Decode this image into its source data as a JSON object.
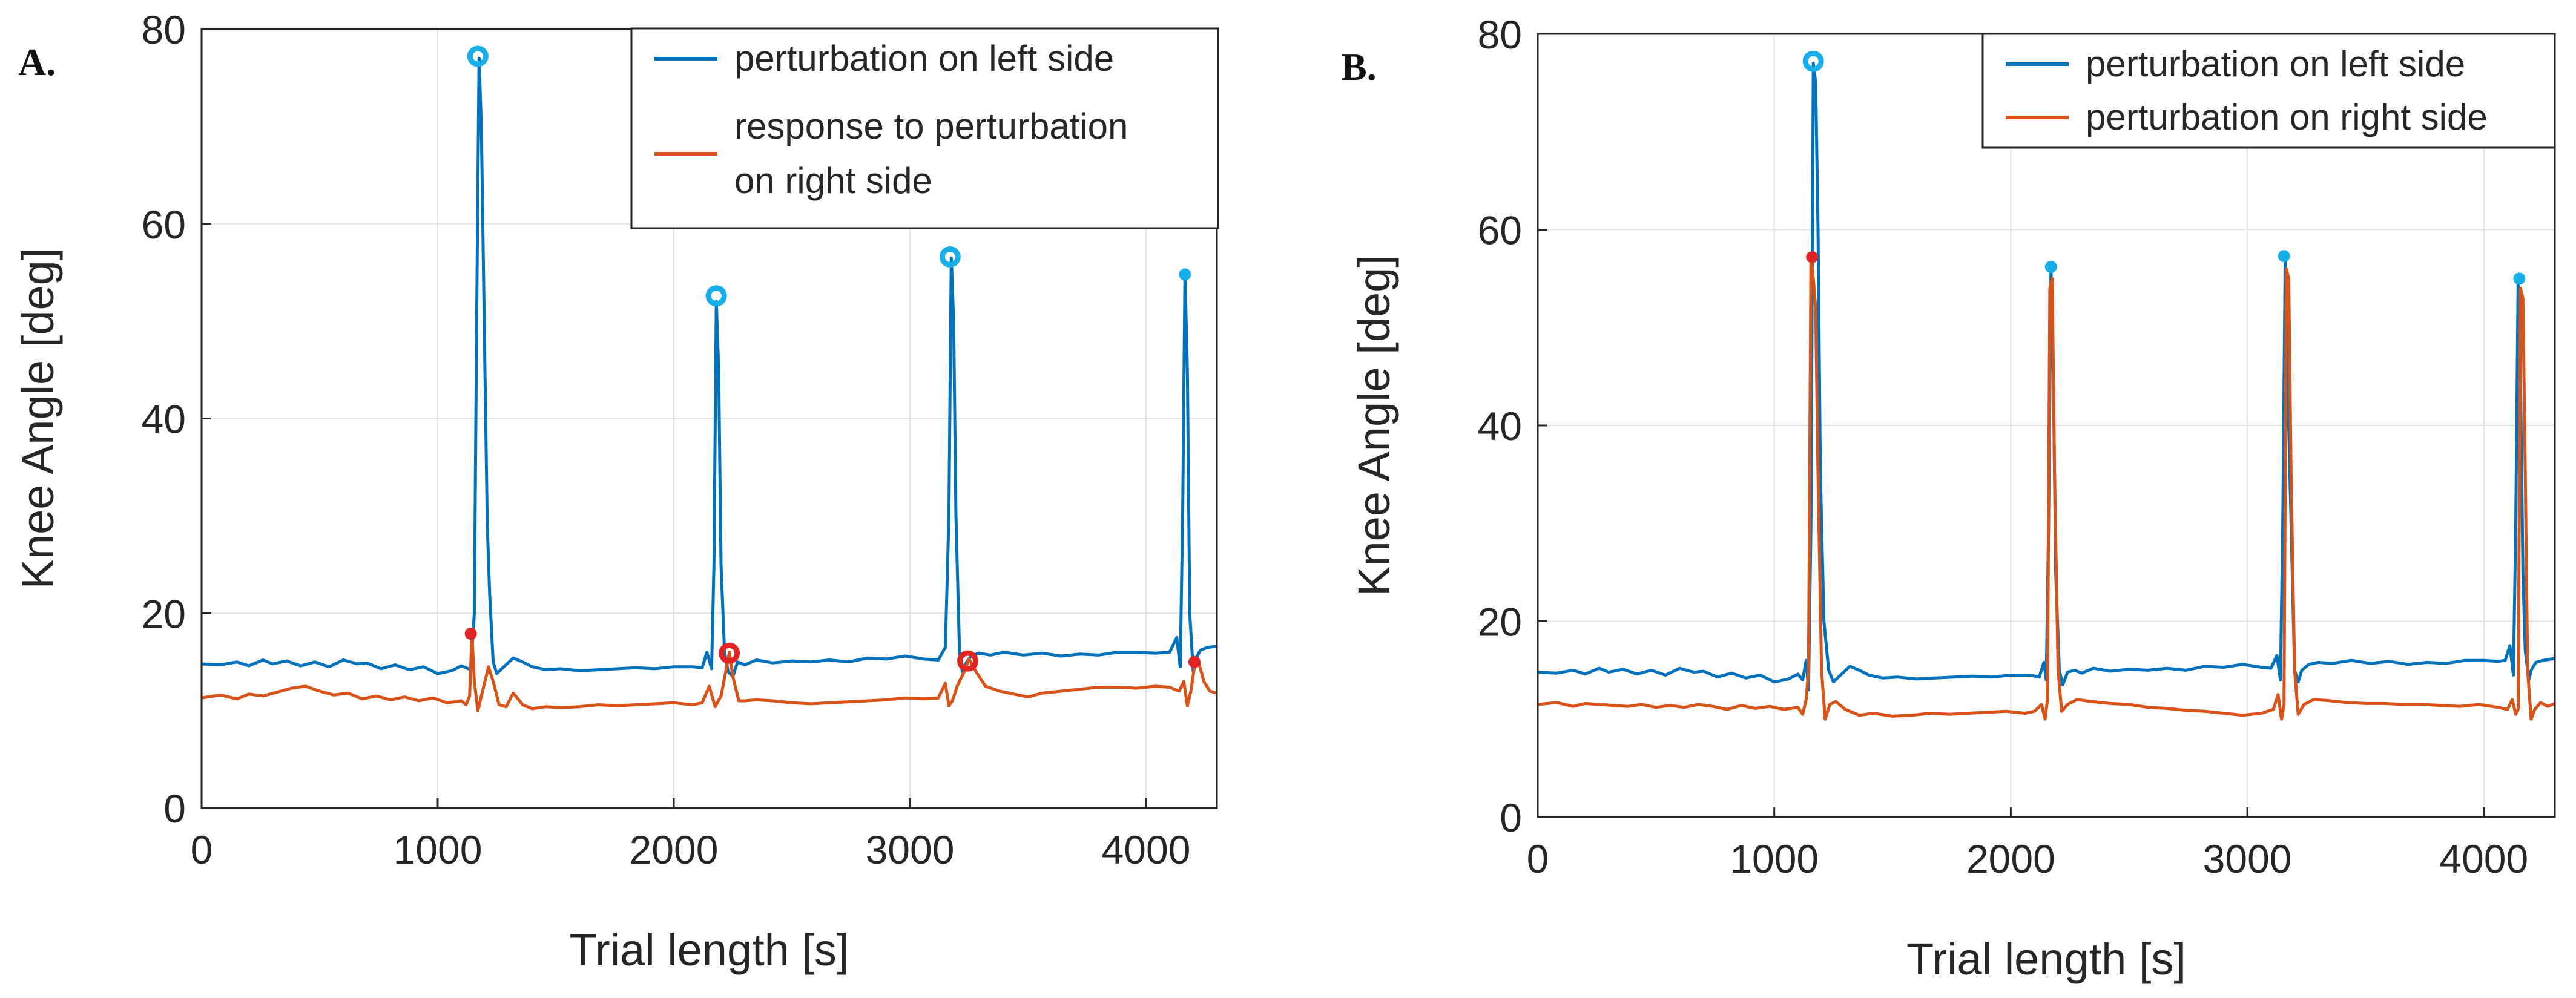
{
  "colors": {
    "blue": "#0072BD",
    "orange": "#D95319",
    "marker_cyan": "#17AEEA",
    "marker_red": "#E02424",
    "grid": "#E3E3E3",
    "axis": "#262626"
  },
  "chart_data": [
    {
      "type": "line",
      "panel_label": "A.",
      "title": "",
      "xlabel": "Trial length [s]",
      "ylabel": "Knee Angle [deg]",
      "xlim": [
        0,
        4300
      ],
      "ylim": [
        0,
        80
      ],
      "xticks": [
        0,
        1000,
        2000,
        3000,
        4000
      ],
      "xtick_labels": [
        "0",
        "1000",
        "2000",
        "3000",
        "4000"
      ],
      "yticks": [
        0,
        20,
        40,
        60,
        80
      ],
      "ytick_labels": [
        "0",
        "20",
        "40",
        "60",
        "80"
      ],
      "grid": true,
      "legend_position": "top-right",
      "series": [
        {
          "name": "perturbation on left side",
          "legend_lines": [
            "perturbation on left side"
          ],
          "color": "#0072BD",
          "x": [
            0,
            80,
            150,
            200,
            260,
            300,
            360,
            420,
            480,
            540,
            600,
            660,
            700,
            760,
            820,
            880,
            940,
            1000,
            1060,
            1100,
            1140,
            1155,
            1165,
            1175,
            1185,
            1200,
            1210,
            1220,
            1235,
            1250,
            1280,
            1320,
            1360,
            1400,
            1460,
            1520,
            1600,
            1680,
            1760,
            1840,
            1920,
            2000,
            2080,
            2120,
            2140,
            2160,
            2170,
            2180,
            2190,
            2200,
            2215,
            2230,
            2250,
            2270,
            2300,
            2350,
            2420,
            2500,
            2580,
            2660,
            2740,
            2820,
            2900,
            2980,
            3060,
            3120,
            3150,
            3165,
            3175,
            3185,
            3195,
            3210,
            3222,
            3240,
            3260,
            3290,
            3340,
            3400,
            3480,
            3560,
            3640,
            3720,
            3800,
            3880,
            3960,
            4040,
            4100,
            4130,
            4145,
            4155,
            4165,
            4175,
            4185,
            4200,
            4215,
            4230,
            4260,
            4300
          ],
          "y": [
            14.8,
            14.7,
            15.0,
            14.6,
            15.2,
            14.8,
            15.1,
            14.6,
            15.0,
            14.5,
            15.2,
            14.8,
            14.9,
            14.3,
            14.7,
            14.2,
            14.5,
            13.8,
            14.1,
            14.6,
            14.2,
            20.0,
            50.0,
            77.0,
            70.0,
            45.0,
            29.0,
            22.0,
            15.0,
            13.8,
            14.5,
            15.4,
            15.0,
            14.5,
            14.2,
            14.3,
            14.1,
            14.2,
            14.3,
            14.4,
            14.3,
            14.5,
            14.5,
            14.4,
            16.0,
            14.3,
            25.0,
            52.0,
            45.0,
            25.0,
            16.0,
            14.0,
            13.5,
            15.0,
            14.7,
            15.2,
            14.9,
            15.1,
            15.0,
            15.2,
            15.0,
            15.4,
            15.3,
            15.6,
            15.3,
            15.2,
            16.5,
            30.0,
            56.5,
            50.0,
            30.0,
            16.0,
            14.0,
            15.0,
            15.6,
            15.9,
            15.7,
            16.0,
            15.7,
            15.9,
            15.6,
            15.8,
            15.7,
            16.0,
            16.0,
            15.9,
            16.0,
            17.5,
            14.5,
            30.0,
            54.8,
            45.0,
            20.0,
            14.0,
            15.5,
            16.2,
            16.5,
            16.6
          ]
        },
        {
          "name": "response to perturbation on right side",
          "legend_lines": [
            "response to perturbation",
            "on right side"
          ],
          "color": "#D95319",
          "x": [
            0,
            80,
            150,
            200,
            260,
            320,
            380,
            440,
            500,
            560,
            620,
            680,
            740,
            800,
            860,
            920,
            980,
            1040,
            1100,
            1120,
            1135,
            1145,
            1155,
            1170,
            1185,
            1200,
            1215,
            1235,
            1260,
            1290,
            1320,
            1360,
            1400,
            1460,
            1520,
            1600,
            1680,
            1760,
            1840,
            1920,
            2000,
            2080,
            2120,
            2150,
            2175,
            2200,
            2220,
            2235,
            2250,
            2275,
            2300,
            2350,
            2420,
            2500,
            2580,
            2660,
            2740,
            2820,
            2900,
            2980,
            3060,
            3120,
            3150,
            3165,
            3180,
            3200,
            3230,
            3250,
            3280,
            3320,
            3380,
            3440,
            3500,
            3560,
            3640,
            3720,
            3800,
            3880,
            3960,
            4040,
            4100,
            4140,
            4160,
            4175,
            4190,
            4205,
            4220,
            4245,
            4270,
            4300
          ],
          "y": [
            11.3,
            11.6,
            11.2,
            11.7,
            11.5,
            11.9,
            12.3,
            12.5,
            12.0,
            11.6,
            11.8,
            11.2,
            11.5,
            11.1,
            11.4,
            11.0,
            11.3,
            10.8,
            11.0,
            10.6,
            11.5,
            17.8,
            13.0,
            10.0,
            11.5,
            13.0,
            14.5,
            13.0,
            10.6,
            10.4,
            11.8,
            10.6,
            10.2,
            10.4,
            10.3,
            10.4,
            10.6,
            10.5,
            10.6,
            10.7,
            10.8,
            10.6,
            10.8,
            12.5,
            10.4,
            11.5,
            14.0,
            16.0,
            13.5,
            11.0,
            11.0,
            11.1,
            11.0,
            10.8,
            10.7,
            10.8,
            10.9,
            11.0,
            11.1,
            11.3,
            11.2,
            11.3,
            12.8,
            10.5,
            11.0,
            12.5,
            14.0,
            15.3,
            14.0,
            12.5,
            12.0,
            11.7,
            11.4,
            11.8,
            12.0,
            12.2,
            12.4,
            12.4,
            12.3,
            12.5,
            12.4,
            12.0,
            13.0,
            10.5,
            12.0,
            14.5,
            15.2,
            13.0,
            12.0,
            11.8
          ]
        }
      ],
      "markers": [
        {
          "series": 0,
          "shape": "ring",
          "color": "#17AEEA",
          "size": "large",
          "points": [
            [
              1170,
              77.2
            ],
            [
              2180,
              52.6
            ],
            [
              3170,
              56.6
            ]
          ]
        },
        {
          "series": 0,
          "shape": "dot",
          "color": "#17AEEA",
          "size": "small",
          "points": [
            [
              4165,
              54.8
            ]
          ]
        },
        {
          "series": 1,
          "shape": "dot",
          "color": "#E02424",
          "size": "small",
          "points": [
            [
              1140,
              17.9
            ],
            [
              4205,
              15.0
            ]
          ]
        },
        {
          "series": 1,
          "shape": "ring",
          "color": "#E02424",
          "size": "large",
          "points": [
            [
              2235,
              15.9
            ],
            [
              3245,
              15.1
            ]
          ]
        }
      ]
    },
    {
      "type": "line",
      "panel_label": "B.",
      "title": "",
      "xlabel": "Trial length [s]",
      "ylabel": "Knee Angle [deg]",
      "xlim": [
        0,
        4300
      ],
      "ylim": [
        0,
        80
      ],
      "xticks": [
        0,
        1000,
        2000,
        3000,
        4000
      ],
      "xtick_labels": [
        "0",
        "1000",
        "2000",
        "3000",
        "4000"
      ],
      "yticks": [
        0,
        20,
        40,
        60,
        80
      ],
      "ytick_labels": [
        "0",
        "20",
        "40",
        "60",
        "80"
      ],
      "grid": true,
      "legend_position": "top-right",
      "series": [
        {
          "name": "perturbation on left side",
          "legend_lines": [
            "perturbation on left side"
          ],
          "color": "#0072BD",
          "x": [
            0,
            80,
            150,
            200,
            260,
            300,
            360,
            420,
            480,
            540,
            600,
            660,
            700,
            760,
            820,
            880,
            940,
            1000,
            1060,
            1100,
            1120,
            1135,
            1145,
            1155,
            1165,
            1175,
            1185,
            1195,
            1210,
            1230,
            1250,
            1280,
            1320,
            1360,
            1400,
            1460,
            1520,
            1600,
            1680,
            1760,
            1840,
            1920,
            2000,
            2080,
            2120,
            2140,
            2150,
            2160,
            2170,
            2180,
            2190,
            2205,
            2220,
            2240,
            2270,
            2300,
            2350,
            2420,
            2500,
            2580,
            2660,
            2740,
            2820,
            2900,
            2980,
            3060,
            3100,
            3125,
            3140,
            3150,
            3160,
            3170,
            3185,
            3200,
            3215,
            3230,
            3260,
            3300,
            3360,
            3440,
            3520,
            3600,
            3680,
            3760,
            3840,
            3920,
            4000,
            4060,
            4090,
            4110,
            4125,
            4135,
            4145,
            4155,
            4165,
            4175,
            4190,
            4200,
            4220,
            4250,
            4300
          ],
          "y": [
            14.8,
            14.7,
            15.0,
            14.6,
            15.2,
            14.8,
            15.1,
            14.6,
            15.0,
            14.5,
            15.2,
            14.8,
            14.9,
            14.3,
            14.7,
            14.2,
            14.5,
            13.8,
            14.1,
            14.6,
            14.0,
            16.0,
            13.0,
            30.0,
            77.0,
            75.0,
            60.0,
            35.0,
            20.0,
            15.0,
            13.8,
            14.5,
            15.4,
            15.0,
            14.5,
            14.2,
            14.3,
            14.1,
            14.2,
            14.3,
            14.4,
            14.3,
            14.5,
            14.5,
            14.3,
            15.8,
            14.0,
            30.0,
            56.0,
            45.0,
            25.0,
            15.0,
            13.5,
            14.8,
            15.0,
            14.7,
            15.2,
            14.9,
            15.1,
            15.0,
            15.2,
            15.0,
            15.4,
            15.3,
            15.6,
            15.3,
            15.2,
            16.5,
            14.0,
            30.0,
            57.0,
            45.0,
            30.0,
            15.0,
            13.8,
            15.0,
            15.6,
            15.8,
            15.7,
            16.0,
            15.7,
            15.9,
            15.6,
            15.8,
            15.7,
            16.0,
            16.0,
            15.9,
            16.0,
            17.5,
            14.5,
            30.0,
            54.8,
            45.0,
            25.0,
            17.0,
            14.0,
            15.0,
            15.8,
            16.0,
            16.2
          ]
        },
        {
          "name": "perturbation on right side",
          "legend_lines": [
            "perturbation on right side"
          ],
          "color": "#D95319",
          "x": [
            0,
            80,
            150,
            200,
            260,
            320,
            380,
            440,
            500,
            560,
            620,
            680,
            740,
            800,
            860,
            920,
            980,
            1040,
            1100,
            1120,
            1135,
            1145,
            1155,
            1165,
            1175,
            1185,
            1200,
            1215,
            1235,
            1260,
            1300,
            1360,
            1420,
            1500,
            1580,
            1660,
            1740,
            1820,
            1900,
            1980,
            2060,
            2100,
            2130,
            2145,
            2155,
            2165,
            2175,
            2185,
            2200,
            2215,
            2240,
            2280,
            2340,
            2420,
            2500,
            2580,
            2660,
            2740,
            2820,
            2900,
            2980,
            3060,
            3110,
            3130,
            3145,
            3155,
            3165,
            3175,
            3185,
            3200,
            3215,
            3240,
            3280,
            3340,
            3420,
            3500,
            3580,
            3660,
            3740,
            3820,
            3900,
            3980,
            4060,
            4100,
            4120,
            4135,
            4145,
            4155,
            4165,
            4175,
            4185,
            4200,
            4215,
            4240,
            4270,
            4300
          ],
          "y": [
            11.5,
            11.7,
            11.3,
            11.6,
            11.5,
            11.4,
            11.3,
            11.5,
            11.2,
            11.4,
            11.2,
            11.5,
            11.3,
            11.0,
            11.4,
            11.1,
            11.3,
            11.0,
            11.2,
            10.5,
            12.0,
            15.0,
            57.2,
            55.0,
            52.0,
            35.0,
            15.0,
            10.0,
            11.5,
            11.8,
            11.0,
            10.4,
            10.6,
            10.3,
            10.4,
            10.6,
            10.5,
            10.6,
            10.7,
            10.8,
            10.6,
            10.8,
            11.5,
            10.0,
            12.0,
            54.0,
            55.0,
            35.0,
            15.0,
            10.8,
            11.5,
            12.0,
            11.8,
            11.6,
            11.5,
            11.2,
            11.1,
            10.9,
            10.8,
            10.6,
            10.4,
            10.6,
            11.0,
            12.5,
            10.0,
            11.5,
            56.0,
            55.0,
            35.0,
            15.0,
            10.5,
            11.5,
            12.0,
            11.9,
            11.7,
            11.6,
            11.6,
            11.5,
            11.5,
            11.4,
            11.3,
            11.5,
            11.2,
            11.0,
            12.0,
            10.5,
            11.0,
            54.0,
            53.0,
            35.0,
            15.0,
            10.0,
            11.0,
            11.7,
            11.3,
            11.6
          ]
        }
      ],
      "markers": [
        {
          "series": 0,
          "shape": "ring",
          "color": "#17AEEA",
          "size": "large",
          "points": [
            [
              1165,
              77.2
            ]
          ]
        },
        {
          "series": 0,
          "shape": "dot",
          "color": "#17AEEA",
          "size": "small",
          "points": [
            [
              2170,
              56.2
            ],
            [
              3155,
              57.3
            ],
            [
              4150,
              55.0
            ]
          ]
        },
        {
          "series": 1,
          "shape": "dot",
          "color": "#E02424",
          "size": "small",
          "points": [
            [
              1160,
              57.2
            ]
          ]
        }
      ]
    }
  ]
}
